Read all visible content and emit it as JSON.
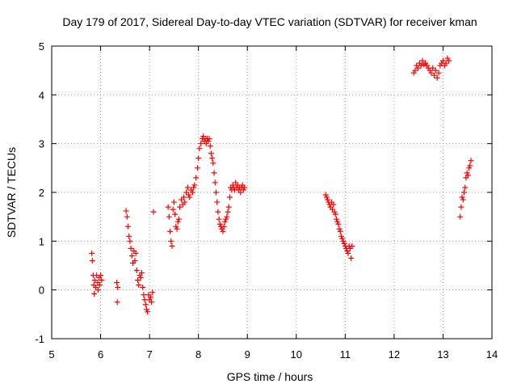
{
  "chart_data": {
    "type": "scatter",
    "title": "Day 179 of 2017, Sidereal Day-to-day VTEC variation (SDTVAR) for receiver kman",
    "xlabel": "GPS time / hours",
    "ylabel": "SDTVAR / TECUs",
    "xlim": [
      5,
      14
    ],
    "ylim": [
      -1,
      5
    ],
    "xticks": [
      5,
      6,
      7,
      8,
      9,
      10,
      11,
      12,
      13,
      14
    ],
    "yticks": [
      -1,
      0,
      1,
      2,
      3,
      4,
      5
    ],
    "xtick_labels": [
      "5",
      "6",
      "7",
      "8",
      "9",
      "10",
      "11",
      "12",
      "13",
      "14"
    ],
    "ytick_labels": [
      "-1",
      "0",
      "1",
      "2",
      "3",
      "4",
      "5"
    ],
    "grid": true,
    "marker": "+",
    "color": "#ff0000",
    "series": [
      {
        "name": "SDTVAR",
        "x": [
          5.82,
          5.83,
          5.85,
          5.86,
          5.87,
          5.88,
          5.9,
          5.92,
          5.94,
          5.95,
          5.97,
          5.98,
          6.0,
          6.02,
          6.33,
          6.34,
          6.35,
          6.52,
          6.54,
          6.56,
          6.58,
          6.6,
          6.62,
          6.64,
          6.66,
          6.68,
          6.7,
          6.72,
          6.74,
          6.76,
          6.78,
          6.8,
          6.82,
          6.84,
          6.86,
          6.88,
          6.9,
          6.92,
          6.94,
          6.96,
          6.98,
          7.0,
          7.02,
          7.04,
          7.06,
          7.08,
          7.38,
          7.4,
          7.42,
          7.44,
          7.46,
          7.48,
          7.5,
          7.52,
          7.54,
          7.56,
          7.58,
          7.6,
          7.62,
          7.65,
          7.68,
          7.7,
          7.72,
          7.75,
          7.78,
          7.8,
          7.82,
          7.85,
          7.88,
          7.9,
          7.92,
          7.95,
          7.98,
          8.0,
          8.02,
          8.05,
          8.08,
          8.1,
          8.12,
          8.14,
          8.16,
          8.18,
          8.2,
          8.22,
          8.24,
          8.26,
          8.28,
          8.3,
          8.32,
          8.34,
          8.36,
          8.38,
          8.4,
          8.42,
          8.44,
          8.46,
          8.48,
          8.5,
          8.52,
          8.54,
          8.56,
          8.58,
          8.6,
          8.62,
          8.64,
          8.66,
          8.68,
          8.7,
          8.72,
          8.74,
          8.76,
          8.78,
          8.8,
          8.82,
          8.84,
          8.86,
          8.88,
          8.9,
          8.92,
          8.94,
          10.6,
          10.62,
          10.64,
          10.66,
          10.68,
          10.7,
          10.72,
          10.74,
          10.76,
          10.78,
          10.8,
          10.82,
          10.84,
          10.86,
          10.88,
          10.9,
          10.92,
          10.94,
          10.96,
          10.98,
          11.0,
          11.02,
          11.04,
          11.06,
          11.08,
          11.1,
          11.12,
          11.14,
          12.4,
          12.43,
          12.46,
          12.49,
          12.52,
          12.55,
          12.58,
          12.61,
          12.64,
          12.67,
          12.7,
          12.73,
          12.76,
          12.79,
          12.82,
          12.85,
          12.88,
          12.91,
          12.94,
          12.97,
          13.0,
          13.03,
          13.06,
          13.09,
          13.12,
          13.35,
          13.37,
          13.39,
          13.41,
          13.43,
          13.45,
          13.47,
          13.49,
          13.51,
          13.53,
          13.55,
          13.57
        ],
        "y": [
          0.75,
          0.6,
          0.3,
          0.1,
          -0.08,
          0.2,
          0.05,
          0.3,
          0.15,
          0.0,
          0.25,
          0.1,
          0.3,
          0.2,
          0.15,
          -0.25,
          0.05,
          1.62,
          1.5,
          1.3,
          1.1,
          1.0,
          0.85,
          0.7,
          0.55,
          0.8,
          0.6,
          0.75,
          0.4,
          0.2,
          0.1,
          0.3,
          0.25,
          0.35,
          0.05,
          -0.1,
          -0.2,
          -0.3,
          -0.4,
          -0.45,
          -0.1,
          -0.2,
          -0.15,
          -0.25,
          -0.05,
          1.6,
          1.7,
          1.5,
          1.2,
          1.0,
          0.9,
          1.65,
          1.8,
          1.55,
          1.3,
          1.25,
          1.4,
          1.45,
          1.7,
          1.85,
          1.75,
          1.9,
          1.8,
          2.0,
          2.1,
          1.95,
          1.9,
          2.05,
          2.0,
          2.1,
          2.15,
          2.3,
          2.5,
          2.7,
          2.9,
          3.0,
          3.1,
          3.15,
          3.05,
          3.1,
          3.0,
          3.1,
          3.05,
          3.1,
          2.95,
          2.8,
          2.7,
          2.6,
          2.4,
          2.2,
          2.0,
          1.8,
          1.6,
          1.45,
          1.35,
          1.3,
          1.25,
          1.2,
          1.3,
          1.4,
          1.45,
          1.5,
          1.6,
          1.7,
          1.9,
          2.1,
          2.05,
          2.15,
          2.1,
          2.05,
          2.2,
          2.1,
          2.15,
          2.05,
          2.1,
          2.0,
          2.1,
          2.15,
          2.05,
          2.1,
          1.95,
          1.9,
          1.85,
          1.8,
          1.75,
          1.7,
          1.8,
          1.65,
          1.75,
          1.6,
          1.55,
          1.45,
          1.4,
          1.35,
          1.25,
          1.2,
          1.1,
          1.05,
          1.0,
          0.95,
          0.9,
          0.85,
          0.8,
          0.75,
          0.9,
          0.85,
          0.65,
          0.9,
          4.45,
          4.5,
          4.6,
          4.55,
          4.65,
          4.6,
          4.7,
          4.62,
          4.65,
          4.6,
          4.55,
          4.5,
          4.45,
          4.55,
          4.4,
          4.5,
          4.35,
          4.45,
          4.6,
          4.65,
          4.7,
          4.6,
          4.65,
          4.75,
          4.7,
          1.5,
          1.7,
          1.9,
          1.85,
          2.0,
          2.1,
          2.3,
          2.4,
          2.35,
          2.5,
          2.55,
          2.65
        ]
      }
    ]
  }
}
